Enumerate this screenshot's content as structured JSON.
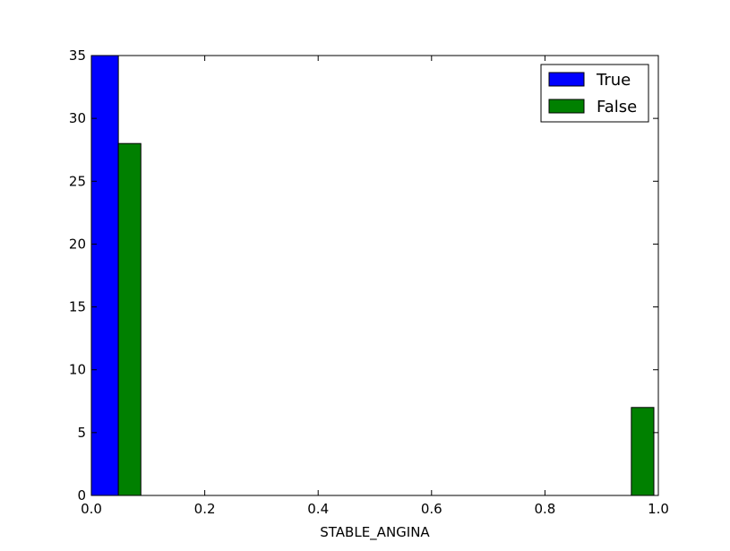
{
  "chart_data": {
    "type": "bar",
    "title": "",
    "xlabel": "STABLE_ANGINA",
    "ylabel": "",
    "xlim": [
      0.0,
      1.0
    ],
    "ylim": [
      0,
      35
    ],
    "x_ticks": [
      "0.0",
      "0.2",
      "0.4",
      "0.6",
      "0.8",
      "1.0"
    ],
    "y_ticks": [
      "0",
      "5",
      "10",
      "15",
      "20",
      "25",
      "30",
      "35"
    ],
    "grid": false,
    "legend_position": "top-right",
    "series": [
      {
        "name": "True",
        "color": "#0000ff",
        "bars": [
          {
            "x0": 0.0,
            "x1": 0.0476,
            "value": 35
          }
        ]
      },
      {
        "name": "False",
        "color": "#008000",
        "bars": [
          {
            "x0": 0.0476,
            "x1": 0.0873,
            "value": 28
          },
          {
            "x0": 0.9524,
            "x1": 0.9921,
            "value": 7
          }
        ]
      }
    ]
  }
}
